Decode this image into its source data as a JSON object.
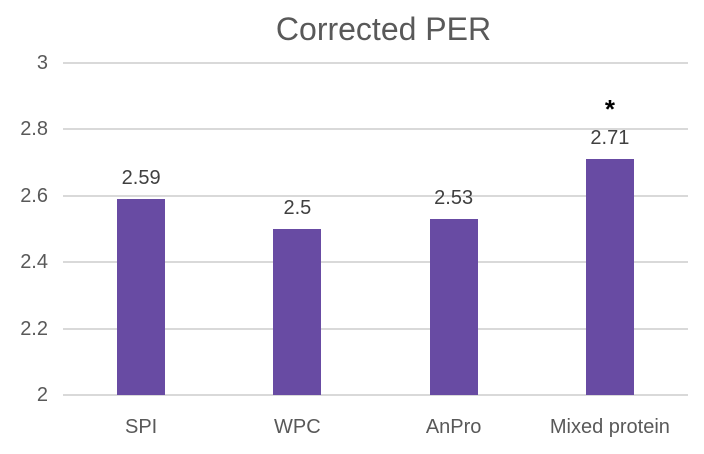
{
  "chart_data": {
    "type": "bar",
    "title": "Corrected PER",
    "categories": [
      "SPI",
      "WPC",
      "AnPro",
      "Mixed protein"
    ],
    "values": [
      2.59,
      2.5,
      2.53,
      2.71
    ],
    "data_labels": [
      "2.59",
      "2.5",
      "2.53",
      "2.71"
    ],
    "annotations": [
      {
        "category_index": 3,
        "text": "*"
      }
    ],
    "ylim": [
      2,
      3
    ],
    "yticks": [
      3,
      2.8,
      2.6,
      2.4,
      2.2,
      2
    ],
    "ytick_labels": [
      "3",
      "2.8",
      "2.6",
      "2.4",
      "2.2",
      "2"
    ],
    "xlabel": "",
    "ylabel": "",
    "grid": true,
    "legend_position": "none",
    "colors": {
      "bar": "#684BA3",
      "gridline": "#D9D9D9",
      "title_text": "#595959",
      "axis_text": "#595959",
      "data_label_text": "#404040",
      "annotation_text": "#000000",
      "background": "#FFFFFF"
    }
  }
}
